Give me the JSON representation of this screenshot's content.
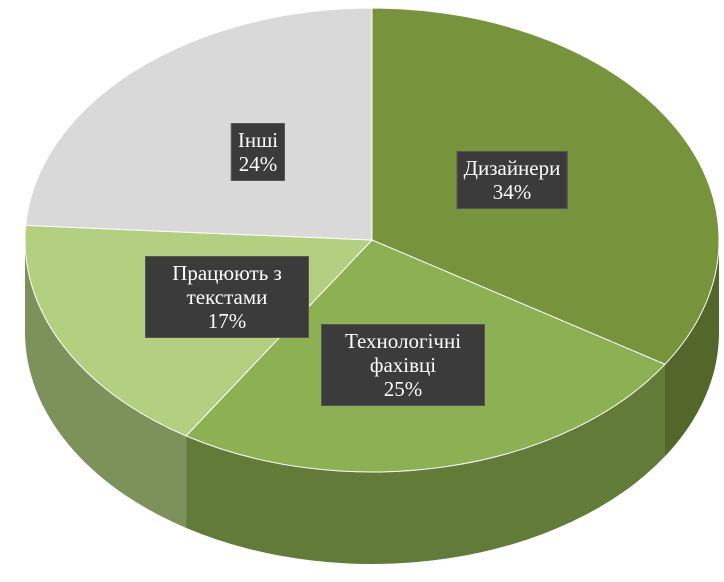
{
  "chart_data": {
    "type": "pie",
    "categories": [
      "Дизайнери",
      "Технологічні фахівці",
      "Працюють з текстами",
      "Інші"
    ],
    "values": [
      34,
      25,
      17,
      24
    ],
    "value_labels": [
      "34%",
      "25%",
      "17%",
      "24%"
    ],
    "colors": [
      "#77933c",
      "#8cb052",
      "#b3cf80",
      "#d9d9d9"
    ]
  }
}
